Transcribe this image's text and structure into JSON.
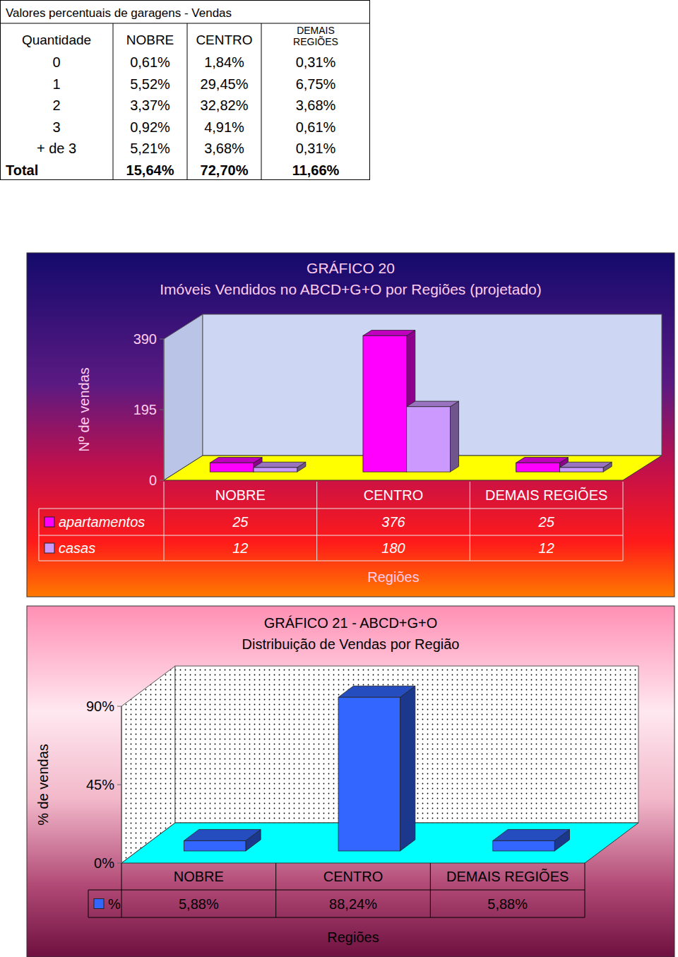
{
  "table": {
    "title": "Valores percentuais de garagens - Vendas",
    "header": [
      "Quantidade",
      "NOBRE",
      "CENTRO",
      "DEMAIS REGIÕES"
    ],
    "rows": [
      [
        "0",
        "0,61%",
        "1,84%",
        "0,31%"
      ],
      [
        "1",
        "5,52%",
        "29,45%",
        "6,75%"
      ],
      [
        "2",
        "3,37%",
        "32,82%",
        "3,68%"
      ],
      [
        "3",
        "0,92%",
        "4,91%",
        "0,61%"
      ],
      [
        "+ de 3",
        "5,21%",
        "3,68%",
        "0,31%"
      ],
      [
        "Total",
        "15,64%",
        "72,70%",
        "11,66%"
      ]
    ]
  },
  "chart_data": [
    {
      "type": "bar",
      "title": "GRÁFICO 20",
      "subtitle": "Imóveis Vendidos no ABCD+G+O por Regiões (projetado)",
      "x_label": "Regiões",
      "y_label": "Nº de vendas",
      "categories": [
        "NOBRE",
        "CENTRO",
        "DEMAIS REGIÕES"
      ],
      "series": [
        {
          "name": "apartamentos",
          "color": "#ff00ff",
          "values": [
            25,
            376,
            25
          ]
        },
        {
          "name": "casas",
          "color": "#cc99ff",
          "values": [
            12,
            180,
            12
          ]
        }
      ],
      "ylim": [
        0,
        390
      ],
      "yticks": [
        0,
        195,
        390
      ],
      "grid": false,
      "data_labels": true
    },
    {
      "type": "bar",
      "title": "GRÁFICO 21 - ABCD+G+O",
      "subtitle": "Distribuição de Vendas por Região",
      "x_label": "Regiões",
      "y_label": "% de vendas",
      "categories": [
        "NOBRE",
        "CENTRO",
        "DEMAIS REGIÕES"
      ],
      "series": [
        {
          "name": "%",
          "color": "#3366ff",
          "values": [
            5.88,
            88.24,
            5.88
          ],
          "value_labels": [
            "5,88%",
            "88,24%",
            "5,88%"
          ]
        }
      ],
      "ylim": [
        0,
        90
      ],
      "yticks": [
        {
          "value": 0,
          "label": "0%"
        },
        {
          "value": 45,
          "label": "45%"
        },
        {
          "value": 90,
          "label": "90%"
        }
      ],
      "grid": false,
      "data_labels": true
    }
  ]
}
